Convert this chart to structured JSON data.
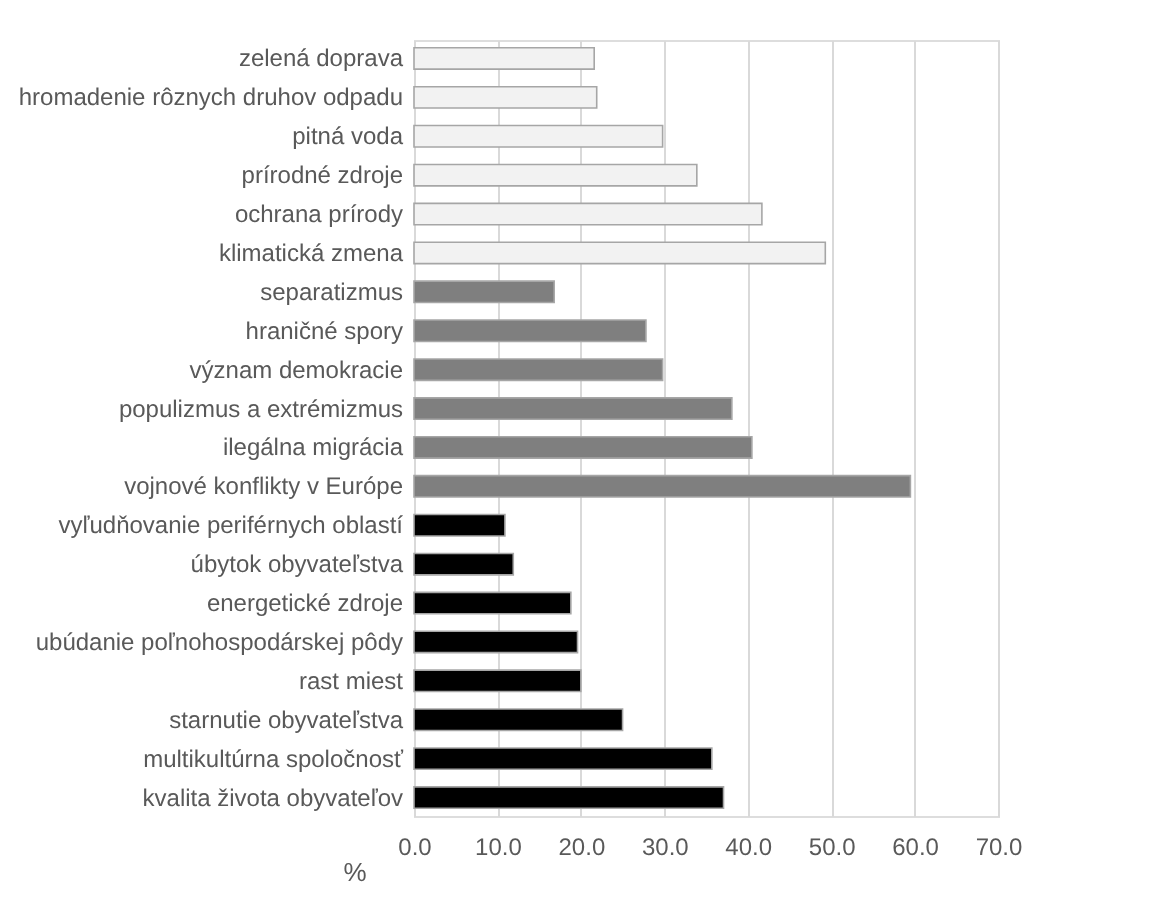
{
  "chart_data": {
    "type": "bar",
    "orientation": "horizontal",
    "xlabel": "%",
    "categories": [
      "zelená doprava",
      "hromadenie rôznych druhov odpadu",
      "pitná voda",
      "prírodné zdroje",
      "ochrana prírody",
      "klimatická zmena",
      "separatizmus",
      "hraničné spory",
      "význam demokracie",
      "populizmus a extrémizmus",
      "ilegálna migrácia",
      "vojnové konflikty v Európe",
      "vyľudňovanie periférnych oblastí",
      "úbytok obyvateľstva",
      "energetické zdroje",
      "ubúdanie poľnohospodárskej pôdy",
      "rast miest",
      "starnutie obyvateľstva",
      "multikultúrna spoločnosť",
      "kvalita života obyvateľov"
    ],
    "values": [
      21.6,
      21.9,
      29.8,
      33.9,
      41.7,
      49.3,
      16.8,
      27.8,
      29.8,
      38.1,
      40.5,
      59.5,
      10.9,
      11.9,
      18.8,
      19.6,
      20.0,
      25.0,
      35.7,
      37.1
    ],
    "colors": [
      "#f2f2f2",
      "#f2f2f2",
      "#f2f2f2",
      "#f2f2f2",
      "#f2f2f2",
      "#f2f2f2",
      "#7f7f7f",
      "#7f7f7f",
      "#7f7f7f",
      "#7f7f7f",
      "#7f7f7f",
      "#7f7f7f",
      "#000000",
      "#000000",
      "#000000",
      "#000000",
      "#000000",
      "#000000",
      "#000000",
      "#000000"
    ],
    "xlim": [
      0,
      70
    ],
    "xticks": [
      {
        "value": 0,
        "label": "0.0"
      },
      {
        "value": 10,
        "label": "10.0"
      },
      {
        "value": 20,
        "label": "20.0"
      },
      {
        "value": 30,
        "label": "30.0"
      },
      {
        "value": 40,
        "label": "40.0"
      },
      {
        "value": 50,
        "label": "50.0"
      },
      {
        "value": 60,
        "label": "60.0"
      },
      {
        "value": 70,
        "label": "70.0"
      }
    ],
    "grid": "x"
  }
}
